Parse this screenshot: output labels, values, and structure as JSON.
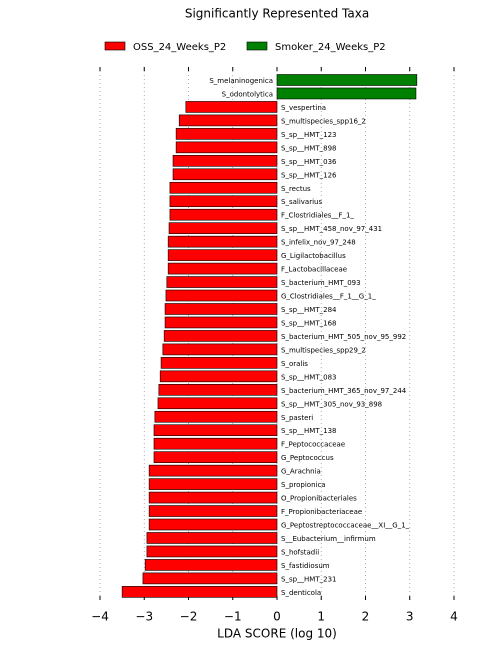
{
  "chart_data": {
    "type": "bar",
    "orientation": "horizontal",
    "title": "Significantly Represented Taxa",
    "x_label": "LDA SCORE (log 10)",
    "categories": [
      "S_melaninogenica",
      "S_odontolytica",
      "S_vespertina",
      "S_multispecies_spp16_2",
      "S_sp__HMT_123",
      "S_sp__HMT_898",
      "S_sp__HMT_036",
      "S_sp__HMT_126",
      "S_rectus",
      "S_salivarius",
      "F_Clostridiales__F_1_",
      "S_sp__HMT_458_nov_97_431",
      "S_infelix_nov_97_248",
      "G_Ligilactobacillus",
      "F_Lactobacillaceae",
      "S_bacterium_HMT_093",
      "G_Clostridiales__F_1__G_1_",
      "S_sp__HMT_284",
      "S_sp__HMT_168",
      "S_bacterium_HMT_505_nov_95_992",
      "S_multispecies_spp29_2",
      "S_oralis",
      "S_sp__HMT_083",
      "S_bacterium_HMT_365_nov_97_244",
      "S_sp__HMT_305_nov_93_898",
      "S_pasteri",
      "S_sp__HMT_138",
      "F_Peptococcaceae",
      "G_Peptococcus",
      "G_Arachnia",
      "S_propionica",
      "O_Propionibacteriales",
      "F_Propionibacteriaceae",
      "G_Peptostreptococcaceae__XI__G_1_",
      "S__Eubacterium__infirmum",
      "S_hofstadii",
      "S_fastidiosum",
      "S_sp__HMT_231",
      "S_denticola"
    ],
    "series": [
      {
        "name": "OSS_24_Weeks_P2",
        "color": "#ff0000",
        "values": [
          null,
          null,
          -2.06,
          -2.21,
          -2.28,
          -2.28,
          -2.35,
          -2.35,
          -2.42,
          -2.42,
          -2.42,
          -2.44,
          -2.46,
          -2.46,
          -2.46,
          -2.49,
          -2.51,
          -2.53,
          -2.53,
          -2.55,
          -2.58,
          -2.62,
          -2.64,
          -2.67,
          -2.69,
          -2.76,
          -2.78,
          -2.78,
          -2.78,
          -2.89,
          -2.89,
          -2.89,
          -2.89,
          -2.89,
          -2.94,
          -2.94,
          -2.98,
          -3.03,
          -3.5
        ]
      },
      {
        "name": "Smoker_24_Weeks_P2",
        "color": "#008000",
        "values": [
          3.16,
          3.14,
          null,
          null,
          null,
          null,
          null,
          null,
          null,
          null,
          null,
          null,
          null,
          null,
          null,
          null,
          null,
          null,
          null,
          null,
          null,
          null,
          null,
          null,
          null,
          null,
          null,
          null,
          null,
          null,
          null,
          null,
          null,
          null,
          null,
          null,
          null,
          null,
          null
        ]
      }
    ],
    "xlim": [
      -4,
      4
    ],
    "xticks": [
      {
        "value": -4,
        "label": "−4"
      },
      {
        "value": -3,
        "label": "−3"
      },
      {
        "value": -2,
        "label": "−2"
      },
      {
        "value": -1,
        "label": "−1"
      },
      0,
      1,
      2,
      3,
      4
    ],
    "grid": true
  }
}
